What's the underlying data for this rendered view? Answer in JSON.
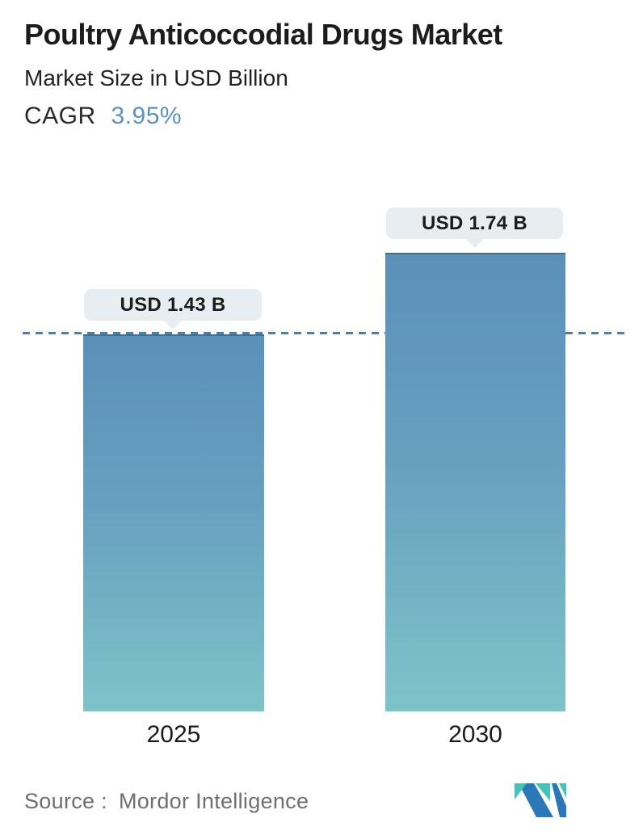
{
  "header": {
    "title": "Poultry Anticoccodial Drugs Market",
    "subtitle": "Market Size in USD Billion",
    "cagr_label": "CAGR",
    "cagr_value": "3.95%"
  },
  "chart_data": {
    "type": "bar",
    "categories": [
      "2025",
      "2030"
    ],
    "values": [
      1.43,
      1.74
    ],
    "value_labels": [
      "USD 1.43 B",
      "USD 1.74 B"
    ],
    "title": "Poultry Anticoccodial Drugs Market",
    "ylabel": "Market Size in USD Billion",
    "unit": "USD Billion",
    "reference_line_value": 1.43,
    "grid": false,
    "legend": "none"
  },
  "footer": {
    "source_label": "Source :",
    "source_name": "Mordor Intelligence",
    "logo_icon": "mordor-intelligence-logo"
  },
  "colors": {
    "accent_blue": "#5b92c4",
    "bar_gradient_top": "#5b90ba",
    "bar_gradient_bottom": "#7fc3c9",
    "dashed_line": "#4d7fac",
    "callout_bg": "#e7edf0",
    "text_dark": "#1c1c1c",
    "text_gray": "#6f6f6f",
    "logo_teal": "#44c3ba",
    "logo_blue": "#2b78b9"
  }
}
